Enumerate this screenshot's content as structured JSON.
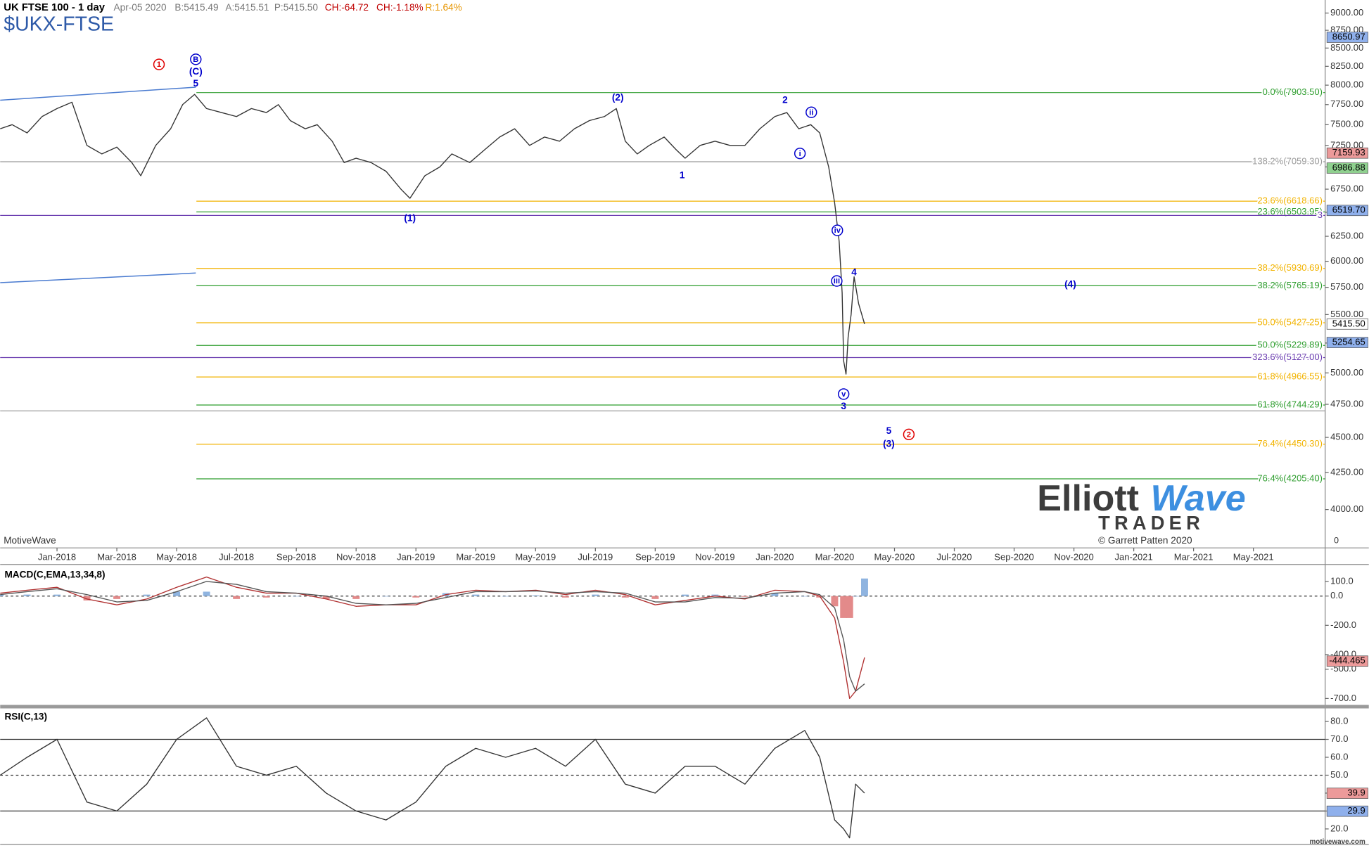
{
  "chart_data": [
    {
      "type": "line",
      "title": "$UKX-FTSE",
      "subtitle": "UK FTSE 100 - 1 day",
      "quote": {
        "date": "Apr-05 2020",
        "bid": "B:5415.49",
        "ask": "A:5415.51",
        "price": "P:5415.50",
        "change": "CH:-64.72",
        "change_pct": "CH:-1.18%",
        "range": "R:1.64%"
      },
      "branding": {
        "platform": "MotiveWave",
        "site": "motivewave.com",
        "logo_elliott": "Elliott",
        "logo_wave": "Wave",
        "logo_trader": "TRADER",
        "copyright": "© Garrett Patten 2020",
        "corner": "0"
      },
      "yscale": "log",
      "xlim": [
        -1.9,
        42.4
      ],
      "ylim": [
        3757,
        9194
      ],
      "xticks": [
        {
          "value": 0,
          "label": "Jan-2018"
        },
        {
          "value": 2,
          "label": "Mar-2018"
        },
        {
          "value": 4,
          "label": "May-2018"
        },
        {
          "value": 6,
          "label": "Jul-2018"
        },
        {
          "value": 8,
          "label": "Sep-2018"
        },
        {
          "value": 10,
          "label": "Nov-2018"
        },
        {
          "value": 12,
          "label": "Jan-2019"
        },
        {
          "value": 14,
          "label": "Mar-2019"
        },
        {
          "value": 16,
          "label": "May-2019"
        },
        {
          "value": 18,
          "label": "Jul-2019"
        },
        {
          "value": 20,
          "label": "Sep-2019"
        },
        {
          "value": 22,
          "label": "Nov-2019"
        },
        {
          "value": 24,
          "label": "Jan-2020"
        },
        {
          "value": 26,
          "label": "Mar-2020"
        },
        {
          "value": 28,
          "label": "May-2020"
        },
        {
          "value": 30,
          "label": "Jul-2020"
        },
        {
          "value": 32,
          "label": "Sep-2020"
        },
        {
          "value": 34,
          "label": "Nov-2020"
        },
        {
          "value": 36,
          "label": "Jan-2021"
        },
        {
          "value": 38,
          "label": "Mar-2021"
        },
        {
          "value": 40,
          "label": "May-2021"
        }
      ],
      "yticks": [
        {
          "value": 4000,
          "label": "4000.00"
        },
        {
          "value": 4250,
          "label": "4250.00"
        },
        {
          "value": 4500,
          "label": "4500.00"
        },
        {
          "value": 4750,
          "label": "4750.00"
        },
        {
          "value": 5000,
          "label": "5000.00"
        },
        {
          "value": 5250,
          "label": "5250.00"
        },
        {
          "value": 5500,
          "label": "5500.00"
        },
        {
          "value": 5750,
          "label": "5750.00"
        },
        {
          "value": 6000,
          "label": "6000.00"
        },
        {
          "value": 6250,
          "label": "6250.00"
        },
        {
          "value": 6500,
          "label": "6500.00"
        },
        {
          "value": 6750,
          "label": "6750.00"
        },
        {
          "value": 7000,
          "label": "7000.00"
        },
        {
          "value": 7250,
          "label": "7250.00"
        },
        {
          "value": 7500,
          "label": "7500.00"
        },
        {
          "value": 7750,
          "label": "7750.00"
        },
        {
          "value": 8000,
          "label": "8000.00"
        },
        {
          "value": 8250,
          "label": "8250.00"
        },
        {
          "value": 8500,
          "label": "8500.00"
        },
        {
          "value": 8750,
          "label": "8750.00"
        },
        {
          "value": 9000,
          "label": "9000.00"
        }
      ],
      "color": "#333333",
      "x": [
        -1.9,
        -1.5,
        -1.0,
        -0.5,
        0,
        0.5,
        1.0,
        1.5,
        2.0,
        2.5,
        2.8,
        3.3,
        3.8,
        4.2,
        4.6,
        5.0,
        5.5,
        6.0,
        6.5,
        7.0,
        7.4,
        7.8,
        8.3,
        8.7,
        9.2,
        9.6,
        10.0,
        10.5,
        11.0,
        11.5,
        11.8,
        12.3,
        12.8,
        13.2,
        13.8,
        14.3,
        14.8,
        15.3,
        15.8,
        16.3,
        16.8,
        17.3,
        17.8,
        18.3,
        18.7,
        19.0,
        19.4,
        19.8,
        20.3,
        20.7,
        21.0,
        21.5,
        22.0,
        22.5,
        23.0,
        23.5,
        24.0,
        24.4,
        24.8,
        25.2,
        25.5,
        25.8,
        26.0,
        26.15,
        26.25,
        26.3,
        26.38,
        26.45,
        26.55,
        26.65,
        26.8,
        27.0
      ],
      "values": [
        7450,
        7500,
        7400,
        7600,
        7700,
        7780,
        7250,
        7150,
        7230,
        7050,
        6900,
        7250,
        7450,
        7750,
        7880,
        7700,
        7650,
        7600,
        7700,
        7650,
        7750,
        7550,
        7450,
        7500,
        7300,
        7050,
        7100,
        7050,
        6950,
        6750,
        6650,
        6900,
        7000,
        7150,
        7050,
        7200,
        7350,
        7450,
        7250,
        7350,
        7300,
        7450,
        7550,
        7600,
        7700,
        7300,
        7150,
        7250,
        7350,
        7200,
        7100,
        7250,
        7300,
        7250,
        7250,
        7450,
        7600,
        7650,
        7450,
        7500,
        7400,
        7000,
        6600,
        6200,
        5700,
        5100,
        4990,
        5300,
        5500,
        5850,
        5600,
        5416
      ],
      "levels": [
        {
          "value": 7903.5,
          "label": "0.0%(7903.50)",
          "color": "#2f9e2f",
          "from": 4.66
        },
        {
          "value": 7059.3,
          "label": "138.2%(7059.30)",
          "color": "#9a9a9a",
          "from": -1.9
        },
        {
          "value": 6618.66,
          "label": "23.6%(6618.66)",
          "color": "#f2b300",
          "from": 4.66
        },
        {
          "value": 6503.95,
          "label": "23.6%(6503.95)",
          "color": "#2f9e2f",
          "from": 4.66
        },
        {
          "value": 6467,
          "label": "3",
          "color": "#6a3cb0",
          "from": -1.9
        },
        {
          "value": 5930.69,
          "label": "38.2%(5930.69)",
          "color": "#f2b300",
          "from": 4.66
        },
        {
          "value": 5765.19,
          "label": "38.2%(5765.19)",
          "color": "#2f9e2f",
          "from": 4.66
        },
        {
          "value": 5427.25,
          "label": "50.0%(5427.25)",
          "color": "#f2b300",
          "from": 4.66
        },
        {
          "value": 5229.89,
          "label": "50.0%(5229.89)",
          "color": "#2f9e2f",
          "from": 4.66
        },
        {
          "value": 5127.0,
          "label": "323.6%(5127.00)",
          "color": "#6a3cb0",
          "from": -1.9
        },
        {
          "value": 4966.55,
          "label": "61.8%(4966.55)",
          "color": "#f2b300",
          "from": 4.66
        },
        {
          "value": 4744.29,
          "label": "61.8%(4744.29)",
          "color": "#2f9e2f",
          "from": 4.66
        },
        {
          "value": 4699,
          "color": "#9a9a9a",
          "from": -1.9
        },
        {
          "value": 4450.3,
          "label": "76.4%(4450.30)",
          "color": "#f2b300",
          "from": 4.66
        },
        {
          "value": 4205.4,
          "label": "76.4%(4205.40)",
          "color": "#2f9e2f",
          "from": 4.66
        }
      ],
      "trendlines": [
        {
          "x": [
            -1.9,
            4.64
          ],
          "y": [
            7806,
            7974
          ],
          "color": "#4a7bd0"
        },
        {
          "x": [
            -1.9,
            4.64
          ],
          "y": [
            5794,
            5886
          ],
          "color": "#4a7bd0"
        }
      ],
      "wave_labels": [
        {
          "text": "1",
          "x": 3.41,
          "y": 8276,
          "color": "#e00000",
          "circled": true
        },
        {
          "text": "B",
          "x": 4.64,
          "y": 8345,
          "color": "#0000cc",
          "circled": true
        },
        {
          "text": "(C)",
          "x": 4.64,
          "y": 8180,
          "color": "#0000cc",
          "circled": false
        },
        {
          "text": "5",
          "x": 4.64,
          "y": 8020,
          "color": "#0000cc",
          "circled": false
        },
        {
          "text": "(1)",
          "x": 11.8,
          "y": 6439,
          "color": "#0000cc",
          "circled": false
        },
        {
          "text": "(2)",
          "x": 18.75,
          "y": 7840,
          "color": "#0000cc",
          "circled": false
        },
        {
          "text": "1",
          "x": 20.9,
          "y": 6904,
          "color": "#0000cc",
          "circled": false
        },
        {
          "text": "2",
          "x": 24.34,
          "y": 7806,
          "color": "#0000cc",
          "circled": false
        },
        {
          "text": "ii",
          "x": 25.22,
          "y": 7653,
          "color": "#0000cc",
          "circled": true
        },
        {
          "text": "i",
          "x": 24.84,
          "y": 7156,
          "color": "#0000cc",
          "circled": true
        },
        {
          "text": "iv",
          "x": 26.09,
          "y": 6311,
          "color": "#0000cc",
          "circled": true
        },
        {
          "text": "iii",
          "x": 26.07,
          "y": 5810,
          "color": "#0000cc",
          "circled": true
        },
        {
          "text": "4",
          "x": 26.65,
          "y": 5894,
          "color": "#0000cc",
          "circled": false
        },
        {
          "text": "v",
          "x": 26.3,
          "y": 4830,
          "color": "#0000cc",
          "circled": true
        },
        {
          "text": "3",
          "x": 26.3,
          "y": 4734,
          "color": "#0000cc",
          "circled": false
        },
        {
          "text": "(4)",
          "x": 33.88,
          "y": 5778,
          "color": "#0000cc",
          "circled": false
        },
        {
          "text": "5",
          "x": 27.81,
          "y": 4548,
          "color": "#0000cc",
          "circled": false
        },
        {
          "text": "(3)",
          "x": 27.81,
          "y": 4452,
          "color": "#0000cc",
          "circled": false
        },
        {
          "text": "2",
          "x": 28.48,
          "y": 4522,
          "color": "#e00000",
          "circled": true
        }
      ],
      "badges": [
        {
          "value": 8650.97,
          "label": "8650.97",
          "color": "#8fb0ec"
        },
        {
          "value": 7159.93,
          "label": "7159.93",
          "color": "#ec9a9a"
        },
        {
          "value": 6986.88,
          "label": "6986.88",
          "color": "#8fd08f"
        },
        {
          "value": 6519.7,
          "label": "6519.70",
          "color": "#8fb0ec"
        },
        {
          "value": 5415.5,
          "label": "5415.50",
          "color": "#ffffff"
        },
        {
          "value": 5254.65,
          "label": "5254.65",
          "color": "#8fb0ec"
        }
      ]
    },
    {
      "type": "line",
      "title": "MACD(C,EMA,13,34,8)",
      "xlim": [
        -1.9,
        42.4
      ],
      "ylim": [
        -738,
        210
      ],
      "yticks": [
        {
          "value": 100,
          "label": "100.0"
        },
        {
          "value": 0,
          "label": "0.0"
        },
        {
          "value": -200,
          "label": "-200.0"
        },
        {
          "value": -400,
          "label": "-400.0"
        },
        {
          "value": -500,
          "label": "-500.0"
        },
        {
          "value": -700,
          "label": "-700.0"
        }
      ],
      "x": [
        -1.9,
        -1,
        0,
        1,
        2,
        3,
        4,
        5,
        6,
        7,
        8,
        9,
        10,
        11,
        12,
        13,
        14,
        15,
        16,
        17,
        18,
        19,
        20,
        21,
        22,
        23,
        24,
        25,
        25.5,
        26,
        26.3,
        26.5,
        26.7,
        27
      ],
      "series": [
        {
          "color": "#b03030",
          "values": [
            20,
            40,
            60,
            -20,
            -60,
            -20,
            60,
            130,
            60,
            20,
            20,
            -20,
            -70,
            -60,
            -60,
            10,
            40,
            30,
            40,
            10,
            40,
            10,
            -60,
            -30,
            0,
            -20,
            40,
            30,
            0,
            -150,
            -450,
            -700,
            -650,
            -420
          ]
        },
        {
          "color": "#555555",
          "values": [
            10,
            30,
            50,
            10,
            -40,
            -30,
            30,
            100,
            80,
            30,
            20,
            0,
            -50,
            -60,
            -50,
            -10,
            30,
            30,
            35,
            20,
            30,
            20,
            -40,
            -40,
            -10,
            -15,
            20,
            30,
            10,
            -80,
            -300,
            -550,
            -650,
            -600
          ]
        }
      ],
      "histogram": {
        "positive_color": "#8fb4e0",
        "negative_color": "#e38a8a",
        "values": [
          10,
          10,
          10,
          -30,
          -20,
          10,
          30,
          30,
          -20,
          -10,
          0,
          -20,
          -20,
          0,
          -10,
          20,
          10,
          0,
          5,
          -10,
          10,
          -10,
          -20,
          10,
          10,
          -5,
          20,
          0,
          -10,
          -70,
          -150,
          -150,
          0,
          120
        ]
      },
      "levels": [
        {
          "value": 0,
          "style": "dashed"
        }
      ],
      "badges": [
        {
          "value": -444.465,
          "label": "-444.465",
          "color": "#ec9a9a"
        }
      ]
    },
    {
      "type": "line",
      "title": "RSI(C,13)",
      "xlim": [
        -1.9,
        42.4
      ],
      "ylim": [
        11.3,
        86.8
      ],
      "yticks": [
        {
          "value": 80,
          "label": "80.0"
        },
        {
          "value": 70,
          "label": "70.0"
        },
        {
          "value": 60,
          "label": "60.0"
        },
        {
          "value": 50,
          "label": "50.0"
        },
        {
          "value": 40,
          "label": "40.0"
        },
        {
          "value": 30,
          "label": "30.0"
        },
        {
          "value": 20,
          "label": "20.0"
        }
      ],
      "color": "#333333",
      "x": [
        -1.9,
        -1,
        0,
        1,
        2,
        3,
        4,
        5,
        6,
        7,
        8,
        9,
        10,
        11,
        12,
        13,
        14,
        15,
        16,
        17,
        18,
        19,
        20,
        21,
        22,
        23,
        24,
        25,
        25.5,
        26,
        26.3,
        26.5,
        26.7,
        27
      ],
      "values": [
        50,
        60,
        70,
        35,
        30,
        45,
        70,
        82,
        55,
        50,
        55,
        40,
        30,
        25,
        35,
        55,
        65,
        60,
        65,
        55,
        70,
        45,
        40,
        55,
        55,
        45,
        65,
        75,
        60,
        25,
        20,
        15,
        45,
        40
      ],
      "levels": [
        {
          "value": 70
        },
        {
          "value": 50,
          "style": "dashed"
        },
        {
          "value": 30
        }
      ],
      "badges": [
        {
          "value": 39.9,
          "label": "39.9",
          "color": "#ec9a9a"
        },
        {
          "value": 29.9,
          "label": "29.9",
          "color": "#8fb0ec"
        }
      ]
    }
  ]
}
